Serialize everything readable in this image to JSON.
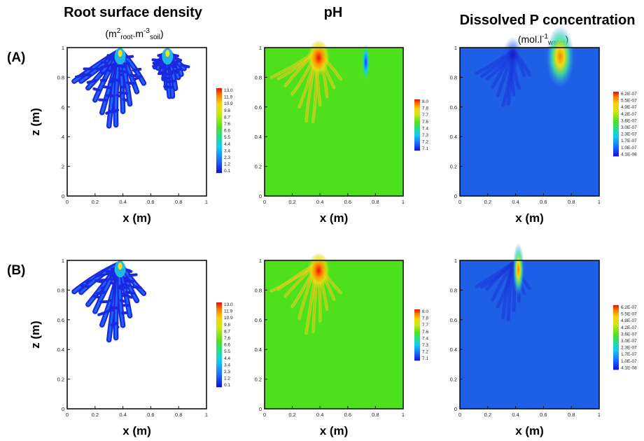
{
  "figure": {
    "row_labels": [
      "(A)",
      "(B)"
    ],
    "column_titles": [
      "Root surface density",
      "pH",
      "Dissolved P concentration"
    ],
    "x_axis_label": "x (m)",
    "z_axis_label": "z (m)"
  },
  "chart_data": [
    {
      "type": "heatmap",
      "panel": "A",
      "title": "Root surface density",
      "xlabel": "x (m)",
      "ylabel": "z (m)",
      "xlim": [
        0,
        1
      ],
      "ylim": [
        0,
        1
      ],
      "xticks": [
        "0",
        "0.2",
        "0.4",
        "0.6",
        "0.8",
        "1"
      ],
      "yticks": [
        "0",
        ".2",
        ".4",
        ".6",
        "0.8",
        "1"
      ],
      "colorbar": {
        "min": 0.1,
        "max": 13.0,
        "labels": [
          "13.0",
          "11.9",
          "10.9",
          "9.8",
          "8.7",
          "7.6",
          "6.6",
          "5.5",
          "4.4",
          "3.4",
          "2.3",
          "1.2",
          "0.1"
        ]
      },
      "background_value": 0.0,
      "root_systems": [
        {
          "origin_x": 0.38,
          "origin_z": 0.98,
          "extent_xmin": 0.05,
          "extent_xmax": 0.55,
          "min_depth_z": 0.44
        },
        {
          "origin_x": 0.72,
          "origin_z": 0.98,
          "extent_xmin": 0.63,
          "extent_xmax": 0.84,
          "min_depth_z": 0.68
        }
      ]
    },
    {
      "type": "heatmap",
      "panel": "A",
      "title": "pH",
      "xlabel": "x (m)",
      "ylabel": "",
      "xlim": [
        0,
        1
      ],
      "ylim": [
        0,
        1
      ],
      "xticks": [
        "0",
        "0.2",
        "0.4",
        "0.6",
        "0.8",
        "1"
      ],
      "yticks": [
        "0",
        "0.2",
        "0.4",
        "0.6",
        "0.8",
        "1"
      ],
      "colorbar": {
        "min": 7.1,
        "max": 8.0,
        "labels": [
          "8.0",
          "7.8",
          "7.7",
          "7.6",
          "7.4",
          "7.3",
          "7.2",
          "7.1"
        ]
      },
      "background_value": 7.6,
      "hotspots": [
        {
          "x": 0.39,
          "z": 0.96,
          "value": 8.0
        },
        {
          "x": 0.73,
          "z": 0.91,
          "value": 7.1
        }
      ]
    },
    {
      "type": "heatmap",
      "panel": "A",
      "title": "Dissolved P concentration",
      "unit": "mol.l-1 water",
      "xlabel": "x (m)",
      "ylabel": "",
      "xlim": [
        0,
        1
      ],
      "ylim": [
        0,
        1
      ],
      "xticks": [
        "0",
        "0.2",
        "0.4",
        "0.6",
        "0.8",
        "1"
      ],
      "yticks": [
        "0",
        "0.2",
        "0.4",
        "0.6",
        "0.8",
        "1"
      ],
      "colorbar": {
        "min": "4.1E-08",
        "max": "6.2E-07",
        "labels": [
          "6.2E-07",
          "5.5E-07",
          "4.9E-07",
          "4.2E-07",
          "3.6E-07",
          "3.0E-07",
          "2.3E-07",
          "1.7E-07",
          "1.0E-07",
          "4.1E-08"
        ]
      },
      "background_value": "1.0E-07",
      "hotspots": [
        {
          "x": 0.72,
          "z": 0.92,
          "value": "6.2E-07"
        },
        {
          "x": 0.38,
          "z": 0.95,
          "value": "4.1E-08"
        }
      ]
    },
    {
      "type": "heatmap",
      "panel": "B",
      "title": "Root surface density",
      "xlabel": "x (m)",
      "ylabel": "z (m)",
      "xlim": [
        0,
        1
      ],
      "ylim": [
        0,
        1
      ],
      "xticks": [
        "0",
        "0.2",
        "0.4",
        "0.6",
        "0.8",
        "1"
      ],
      "yticks": [
        "0",
        "0.2",
        "0.4",
        "0.6",
        "0.8",
        "1"
      ],
      "colorbar": {
        "min": 0.1,
        "max": 13.0,
        "labels": [
          "13.0",
          "11.9",
          "10.9",
          "9.8",
          "8.7",
          "7.6",
          "6.6",
          "5.5",
          "4.4",
          "3.4",
          "2.3",
          "1.2",
          "0.1"
        ]
      },
      "background_value": 0.0,
      "root_systems": [
        {
          "origin_x": 0.38,
          "origin_z": 0.98,
          "extent_xmin": 0.05,
          "extent_xmax": 0.55,
          "min_depth_z": 0.44
        }
      ]
    },
    {
      "type": "heatmap",
      "panel": "B",
      "title": "pH",
      "xlabel": "x (m)",
      "ylabel": "",
      "xlim": [
        0,
        1
      ],
      "ylim": [
        0,
        1
      ],
      "xticks": [
        "0",
        "0.2",
        "0.4",
        "0.6",
        "0.8",
        "1"
      ],
      "yticks": [
        "0",
        "0.2",
        "0.4",
        "0.6",
        "0.8",
        "1"
      ],
      "colorbar": {
        "min": 7.1,
        "max": 8.0,
        "labels": [
          "8.0",
          "7.8",
          "7.7",
          "7.6",
          "7.4",
          "7.3",
          "7.2",
          "7.1"
        ]
      },
      "background_value": 7.6,
      "hotspots": [
        {
          "x": 0.39,
          "z": 0.96,
          "value": 8.0
        }
      ]
    },
    {
      "type": "heatmap",
      "panel": "B",
      "title": "Dissolved P concentration",
      "unit": "mol.l-1 water",
      "xlabel": "x (m)",
      "ylabel": "",
      "xlim": [
        0,
        1
      ],
      "ylim": [
        0,
        1
      ],
      "xticks": [
        "0",
        "0.2",
        "0.4",
        "0.6",
        "0.8",
        "1"
      ],
      "yticks": [
        "0",
        "0.2",
        "0.4",
        "0.6",
        "0.8",
        "1"
      ],
      "colorbar": {
        "min": "4.1E-08",
        "max": "6.2E-07",
        "labels": [
          "6.2E-07",
          "5.5E-07",
          "4.9E-07",
          "4.2E-07",
          "3.6E-07",
          "3.0E-07",
          "2.3E-07",
          "1.7E-07",
          "1.0E-07",
          "4.1E-08"
        ]
      },
      "background_value": "1.0E-07",
      "hotspots": [
        {
          "x": 0.42,
          "z": 0.92,
          "value": "4.9E-07"
        }
      ]
    }
  ]
}
